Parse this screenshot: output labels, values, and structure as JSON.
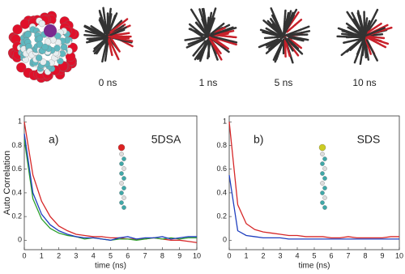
{
  "snapshots": {
    "labels": [
      "0 ns",
      "1 ns",
      "5 ns",
      "10 ns"
    ]
  },
  "chart_data": [
    {
      "type": "line",
      "label": "a)",
      "title": "5DSA",
      "xlabel": "time (ns)",
      "ylabel": "Auto Correlation",
      "x": [
        0,
        0.5,
        1,
        1.5,
        2,
        2.5,
        3,
        3.5,
        4,
        4.5,
        5,
        5.5,
        6,
        6.5,
        7,
        7.5,
        8,
        8.5,
        9,
        9.5,
        10
      ],
      "xlim": [
        0,
        10
      ],
      "xticks": [
        0,
        1,
        2,
        3,
        4,
        5,
        6,
        7,
        8,
        9,
        10
      ],
      "ylim": [
        -0.08,
        1.05
      ],
      "yticks": [
        0,
        0.2,
        0.4,
        0.6,
        0.8,
        1
      ],
      "series": [
        {
          "color": "#d62728",
          "values": [
            1,
            0.55,
            0.33,
            0.2,
            0.12,
            0.08,
            0.05,
            0.04,
            0.03,
            0.03,
            0.02,
            0.02,
            0.01,
            0.01,
            0.01,
            0.02,
            0.01,
            0,
            0,
            -0.01,
            -0.02
          ]
        },
        {
          "color": "#2ca02c",
          "values": [
            0.85,
            0.35,
            0.18,
            0.1,
            0.06,
            0.04,
            0.03,
            0.01,
            0.02,
            0.01,
            0,
            0.01,
            0.01,
            0,
            0.01,
            0.02,
            0.01,
            0.02,
            0.01,
            0.02,
            0.02
          ]
        },
        {
          "color": "#1f3fbf",
          "values": [
            0.9,
            0.4,
            0.22,
            0.13,
            0.08,
            0.05,
            0.03,
            0.02,
            0.02,
            0.01,
            0,
            0.02,
            0.03,
            0.01,
            0.02,
            0.02,
            0.03,
            0.01,
            0.02,
            0.03,
            0.03
          ]
        }
      ]
    },
    {
      "type": "line",
      "label": "b)",
      "title": "SDS",
      "xlabel": "time (ns)",
      "x": [
        0,
        0.5,
        1,
        1.5,
        2,
        2.5,
        3,
        3.5,
        4,
        4.5,
        5,
        5.5,
        6,
        6.5,
        7,
        7.5,
        8,
        8.5,
        9,
        9.5,
        10
      ],
      "xlim": [
        0,
        10
      ],
      "xticks": [
        0,
        1,
        2,
        3,
        4,
        5,
        6,
        7,
        8,
        9,
        10
      ],
      "ylim": [
        -0.08,
        1.05
      ],
      "yticks": [
        0,
        0.2,
        0.4,
        0.6,
        0.8,
        1
      ],
      "series": [
        {
          "color": "#d62728",
          "values": [
            1,
            0.3,
            0.14,
            0.09,
            0.07,
            0.06,
            0.05,
            0.04,
            0.04,
            0.03,
            0.03,
            0.03,
            0.02,
            0.02,
            0.03,
            0.02,
            0.02,
            0.02,
            0.02,
            0.03,
            0.03
          ]
        },
        {
          "color": "#1f3fbf",
          "values": [
            0.55,
            0.08,
            0.04,
            0.03,
            0.02,
            0.02,
            0.02,
            0.01,
            0.01,
            0.01,
            0.01,
            0.01,
            0.01,
            0.01,
            0.01,
            0.01,
            0.01,
            0.01,
            0.01,
            0.01,
            0.01
          ]
        }
      ]
    }
  ]
}
